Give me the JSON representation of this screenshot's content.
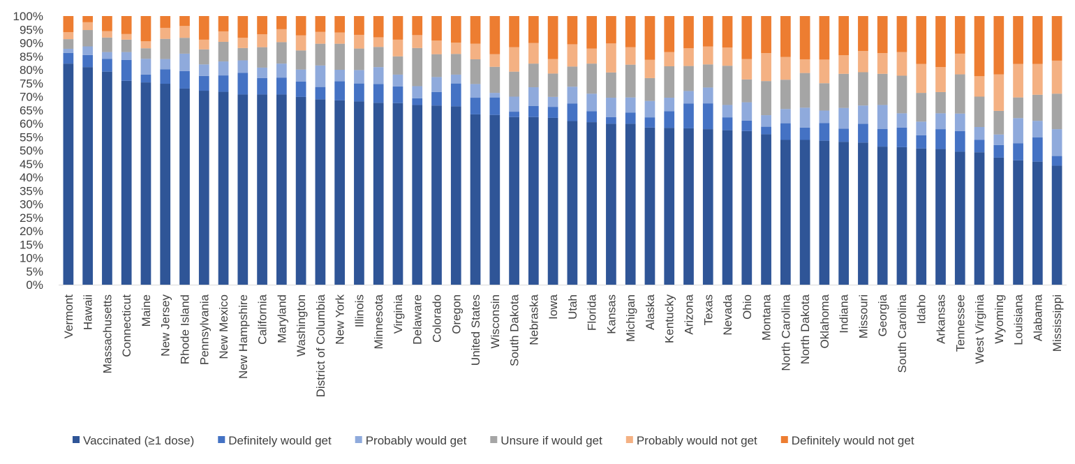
{
  "chart_data": {
    "type": "bar",
    "stacked": true,
    "ylim": [
      0,
      100
    ],
    "ytick_step": 5,
    "ytick_suffix": "%",
    "categories": [
      "Vermont",
      "Hawaii",
      "Massachusetts",
      "Connecticut",
      "Maine",
      "New Jersey",
      "Rhode Island",
      "Pennsylvania",
      "New Mexico",
      "New Hampshire",
      "California",
      "Maryland",
      "Washington",
      "District of Columbia",
      "New York",
      "Illinois",
      "Minnesota",
      "Virginia",
      "Delaware",
      "Colorado",
      "Oregon",
      "United States",
      "Wisconsin",
      "South Dakota",
      "Nebraska",
      "Iowa",
      "Utah",
      "Florida",
      "Kansas",
      "Michigan",
      "Alaska",
      "Kentucky",
      "Arizona",
      "Texas",
      "Nevada",
      "Ohio",
      "Montana",
      "North Carolina",
      "North Dakota",
      "Oklahoma",
      "Indiana",
      "Missouri",
      "Georgia",
      "South Carolina",
      "Idaho",
      "Arkansas",
      "Tennessee",
      "West Virginia",
      "Wyoming",
      "Louisiana",
      "Alabama",
      "Mississippi"
    ],
    "series": [
      {
        "name": "Vaccinated (≥1 dose)",
        "color": "#2F5597",
        "values": [
          82.3,
          81.0,
          79.3,
          75.9,
          75.3,
          74.8,
          73.0,
          72.2,
          71.8,
          70.8,
          70.8,
          70.8,
          69.9,
          69.0,
          68.6,
          68.2,
          67.7,
          67.6,
          66.9,
          66.7,
          66.4,
          63.4,
          63.2,
          62.4,
          62.4,
          62.1,
          60.9,
          60.5,
          59.9,
          59.9,
          58.5,
          58.4,
          58.2,
          57.9,
          57.5,
          57.2,
          56.0,
          53.9,
          53.9,
          53.6,
          53.2,
          52.9,
          51.4,
          51.2,
          50.7,
          50.5,
          49.5,
          49.3,
          47.3,
          46.3,
          45.8,
          44.3
        ]
      },
      {
        "name": "Definitely would get",
        "color": "#4472C4",
        "values": [
          4.0,
          4.5,
          4.8,
          7.8,
          2.9,
          5.4,
          6.5,
          5.5,
          6.1,
          8.1,
          6.1,
          6.3,
          5.7,
          4.6,
          7.1,
          6.7,
          7.0,
          6.2,
          2.5,
          5.0,
          8.5,
          6.2,
          6.5,
          2.0,
          4.1,
          4.1,
          6.5,
          4.1,
          2.5,
          4.2,
          3.8,
          6.2,
          9.2,
          9.6,
          4.8,
          3.9,
          2.8,
          6.2,
          4.6,
          6.6,
          4.9,
          7.0,
          6.6,
          7.3,
          4.9,
          7.4,
          7.7,
          4.6,
          4.7,
          6.3,
          9.0,
          3.6
        ]
      },
      {
        "name": "Probably would get",
        "color": "#8FAADC",
        "values": [
          1.5,
          3.2,
          2.5,
          2.9,
          5.9,
          3.8,
          6.5,
          4.3,
          5.2,
          4.6,
          3.9,
          5.2,
          4.5,
          8.0,
          4.3,
          5.0,
          6.3,
          4.4,
          4.5,
          5.6,
          3.3,
          5.1,
          1.7,
          5.6,
          7.0,
          3.7,
          6.3,
          6.5,
          7.2,
          5.6,
          6.1,
          5.0,
          4.7,
          5.9,
          4.6,
          6.8,
          4.3,
          5.3,
          7.4,
          4.6,
          7.7,
          6.8,
          8.9,
          5.3,
          5.1,
          5.9,
          6.5,
          4.8,
          3.9,
          9.4,
          6.2,
          10.0
        ]
      },
      {
        "name": "Unsure if would get",
        "color": "#A5A5A5",
        "values": [
          3.6,
          6.1,
          5.4,
          4.6,
          3.9,
          7.5,
          5.9,
          5.6,
          7.3,
          4.6,
          7.6,
          8.0,
          7.1,
          8.1,
          9.7,
          8.0,
          7.5,
          6.8,
          14.2,
          8.5,
          7.7,
          9.2,
          9.7,
          9.3,
          8.8,
          8.7,
          7.5,
          11.2,
          9.4,
          12.2,
          8.5,
          11.7,
          9.3,
          8.6,
          14.6,
          8.5,
          12.7,
          10.9,
          12.9,
          10.2,
          12.7,
          12.4,
          11.6,
          14.0,
          10.7,
          7.9,
          14.6,
          11.3,
          8.8,
          7.7,
          9.7,
          13.2
        ]
      },
      {
        "name": "Probably would not get",
        "color": "#F4B183",
        "values": [
          2.6,
          2.9,
          2.4,
          2.1,
          2.6,
          4.1,
          4.4,
          3.6,
          3.9,
          3.8,
          4.8,
          4.8,
          5.6,
          4.4,
          4.2,
          5.1,
          3.6,
          6.2,
          4.8,
          5.1,
          4.2,
          5.8,
          4.7,
          9.1,
          7.7,
          5.4,
          8.3,
          5.6,
          10.8,
          6.5,
          6.8,
          5.3,
          6.6,
          6.7,
          6.8,
          7.6,
          10.4,
          8.5,
          5.1,
          8.8,
          6.9,
          7.9,
          7.7,
          8.8,
          10.8,
          9.3,
          7.7,
          7.6,
          13.6,
          12.5,
          11.5,
          12.3
        ]
      },
      {
        "name": "Definitely would not get",
        "color": "#ED7D31",
        "values": [
          6.0,
          2.3,
          5.6,
          6.7,
          9.4,
          4.4,
          3.7,
          8.8,
          5.7,
          8.1,
          6.8,
          4.9,
          7.2,
          5.9,
          6.1,
          7.0,
          7.9,
          8.8,
          7.1,
          9.1,
          9.9,
          10.3,
          14.2,
          11.6,
          10.0,
          16.0,
          10.5,
          12.1,
          10.2,
          11.6,
          16.3,
          13.4,
          12.0,
          11.3,
          11.7,
          16.0,
          13.8,
          15.2,
          16.1,
          16.2,
          14.6,
          13.0,
          13.8,
          13.4,
          17.8,
          19.0,
          14.0,
          22.4,
          21.7,
          17.8,
          17.8,
          16.6
        ]
      }
    ]
  }
}
